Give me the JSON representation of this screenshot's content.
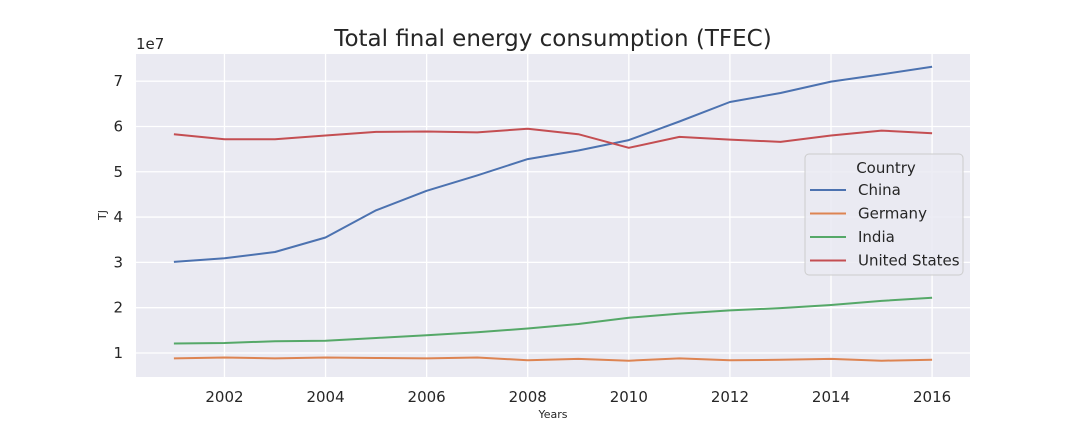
{
  "chart_data": {
    "type": "line",
    "title": "Total final energy consumption (TFEC)",
    "xlabel": "Years",
    "ylabel": "TJ",
    "y_offset_label": "1e7",
    "xlim": [
      2000.25,
      2016.75
    ],
    "ylim": [
      0.47,
      7.6
    ],
    "x": [
      2001,
      2002,
      2003,
      2004,
      2005,
      2006,
      2007,
      2008,
      2009,
      2010,
      2011,
      2012,
      2013,
      2014,
      2015,
      2016
    ],
    "xticks": [
      2002,
      2004,
      2006,
      2008,
      2010,
      2012,
      2014,
      2016
    ],
    "yticks": [
      1,
      2,
      3,
      4,
      5,
      6,
      7
    ],
    "grid": true,
    "legend_title": "Country",
    "legend_position": "center-right",
    "series": [
      {
        "name": "China",
        "color": "#4c72b0",
        "values": [
          3.01,
          3.09,
          3.23,
          3.55,
          4.15,
          4.58,
          4.92,
          5.28,
          5.47,
          5.7,
          6.11,
          6.54,
          6.74,
          6.99,
          7.15,
          7.32
        ]
      },
      {
        "name": "Germany",
        "color": "#dd8452",
        "values": [
          0.88,
          0.9,
          0.88,
          0.9,
          0.89,
          0.88,
          0.9,
          0.84,
          0.87,
          0.83,
          0.88,
          0.84,
          0.85,
          0.87,
          0.83,
          0.85
        ]
      },
      {
        "name": "India",
        "color": "#55a868",
        "values": [
          1.21,
          1.22,
          1.26,
          1.27,
          1.33,
          1.39,
          1.46,
          1.54,
          1.64,
          1.78,
          1.87,
          1.94,
          1.99,
          2.06,
          2.15,
          2.22
        ]
      },
      {
        "name": "United States",
        "color": "#c44e52",
        "values": [
          5.83,
          5.72,
          5.72,
          5.8,
          5.88,
          5.89,
          5.87,
          5.95,
          5.83,
          5.53,
          5.77,
          5.71,
          5.66,
          5.8,
          5.91,
          5.85
        ]
      }
    ]
  }
}
